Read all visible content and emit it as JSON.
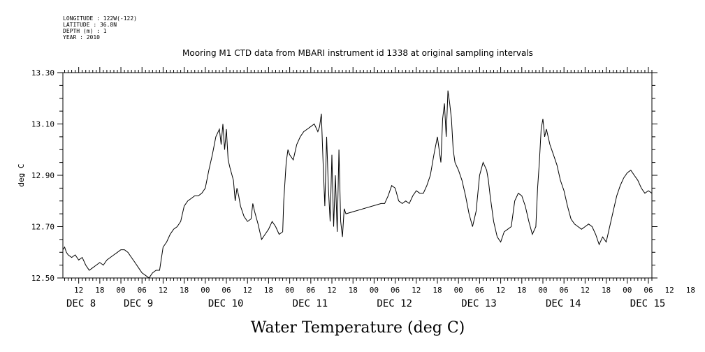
{
  "meta": {
    "longitude": "LONGITUDE : 122W(-122)",
    "latitude": "LATITUDE : 36.8N",
    "depth": "DEPTH (m) : 1",
    "year": "YEAR : 2010"
  },
  "chart_data": {
    "type": "line",
    "title": "Mooring M1 CTD data from MBARI instrument id 1338 at original sampling intervals",
    "xlabel": "Water Temperature (deg C)",
    "ylabel": "deg C",
    "ylim": [
      12.5,
      13.3
    ],
    "yticks": [
      "12.50",
      "12.70",
      "12.90",
      "13.10",
      "13.30"
    ],
    "x_unit": "hours since DEC 8 00:00",
    "xlim": [
      7.5,
      175
    ],
    "hour_ticks": [
      "12",
      "18",
      "00",
      "06",
      "12",
      "18",
      "00",
      "06",
      "12",
      "18",
      "00",
      "06",
      "12",
      "18",
      "00",
      "06",
      "12",
      "18",
      "00",
      "06",
      "12",
      "18",
      "00",
      "06",
      "12",
      "18",
      "00",
      "06",
      "12",
      "18",
      "00",
      "06"
    ],
    "day_labels": [
      "DEC  8",
      "DEC  9",
      "DEC 10",
      "DEC 11",
      "DEC 12",
      "DEC 13",
      "DEC 14",
      "DEC 15"
    ],
    "series": [
      {
        "values": [
          [
            7.5,
            12.61
          ],
          [
            8,
            12.62
          ],
          [
            8.5,
            12.6
          ],
          [
            9,
            12.59
          ],
          [
            10,
            12.58
          ],
          [
            11,
            12.59
          ],
          [
            12,
            12.57
          ],
          [
            13,
            12.58
          ],
          [
            14,
            12.55
          ],
          [
            15,
            12.53
          ],
          [
            16,
            12.54
          ],
          [
            17,
            12.55
          ],
          [
            18,
            12.56
          ],
          [
            19,
            12.55
          ],
          [
            20,
            12.57
          ],
          [
            21,
            12.58
          ],
          [
            22,
            12.59
          ],
          [
            23,
            12.6
          ],
          [
            24,
            12.61
          ],
          [
            25,
            12.61
          ],
          [
            26,
            12.6
          ],
          [
            27,
            12.58
          ],
          [
            28,
            12.56
          ],
          [
            29,
            12.54
          ],
          [
            30,
            12.52
          ],
          [
            31,
            12.51
          ],
          [
            32,
            12.5
          ],
          [
            33,
            12.52
          ],
          [
            34,
            12.53
          ],
          [
            35,
            12.53
          ],
          [
            36,
            12.62
          ],
          [
            37,
            12.64
          ],
          [
            38,
            12.67
          ],
          [
            39,
            12.69
          ],
          [
            40,
            12.7
          ],
          [
            41,
            12.72
          ],
          [
            42,
            12.78
          ],
          [
            43,
            12.8
          ],
          [
            44,
            12.81
          ],
          [
            45,
            12.82
          ],
          [
            46,
            12.82
          ],
          [
            47,
            12.83
          ],
          [
            48,
            12.85
          ],
          [
            49,
            12.92
          ],
          [
            50,
            12.98
          ],
          [
            51,
            13.05
          ],
          [
            52,
            13.08
          ],
          [
            52.5,
            13.02
          ],
          [
            53,
            13.1
          ],
          [
            53.5,
            13.0
          ],
          [
            54,
            13.08
          ],
          [
            54.5,
            12.96
          ],
          [
            55,
            12.93
          ],
          [
            56,
            12.88
          ],
          [
            56.5,
            12.8
          ],
          [
            57,
            12.85
          ],
          [
            57.5,
            12.82
          ],
          [
            58,
            12.78
          ],
          [
            59,
            12.74
          ],
          [
            60,
            12.72
          ],
          [
            61,
            12.73
          ],
          [
            61.5,
            12.79
          ],
          [
            62,
            12.76
          ],
          [
            63,
            12.71
          ],
          [
            64,
            12.65
          ],
          [
            65,
            12.67
          ],
          [
            66,
            12.69
          ],
          [
            67,
            12.72
          ],
          [
            68,
            12.7
          ],
          [
            69,
            12.67
          ],
          [
            70,
            12.68
          ],
          [
            70.3,
            12.8
          ],
          [
            71,
            12.95
          ],
          [
            71.5,
            13.0
          ],
          [
            72,
            12.98
          ],
          [
            73,
            12.96
          ],
          [
            74,
            13.02
          ],
          [
            75,
            13.05
          ],
          [
            76,
            13.07
          ],
          [
            77,
            13.08
          ],
          [
            78,
            13.09
          ],
          [
            79,
            13.1
          ],
          [
            80,
            13.07
          ],
          [
            80.5,
            13.09
          ],
          [
            81,
            13.14
          ],
          [
            81.5,
            12.95
          ],
          [
            82,
            12.78
          ],
          [
            82.5,
            13.05
          ],
          [
            83,
            12.85
          ],
          [
            83.5,
            12.72
          ],
          [
            84,
            12.98
          ],
          [
            84.5,
            12.7
          ],
          [
            85,
            12.9
          ],
          [
            85.5,
            12.68
          ],
          [
            86,
            13.0
          ],
          [
            86.5,
            12.72
          ],
          [
            87,
            12.66
          ],
          [
            87.5,
            12.77
          ],
          [
            88,
            12.75
          ],
          [
            98,
            12.79
          ],
          [
            99,
            12.79
          ],
          [
            100,
            12.82
          ],
          [
            101,
            12.86
          ],
          [
            102,
            12.85
          ],
          [
            103,
            12.8
          ],
          [
            104,
            12.79
          ],
          [
            105,
            12.8
          ],
          [
            106,
            12.79
          ],
          [
            107,
            12.82
          ],
          [
            108,
            12.84
          ],
          [
            109,
            12.83
          ],
          [
            110,
            12.83
          ],
          [
            111,
            12.86
          ],
          [
            112,
            12.9
          ],
          [
            113,
            12.98
          ],
          [
            114,
            13.05
          ],
          [
            115,
            12.95
          ],
          [
            115.5,
            13.12
          ],
          [
            116,
            13.18
          ],
          [
            116.5,
            13.05
          ],
          [
            117,
            13.23
          ],
          [
            117.5,
            13.18
          ],
          [
            118,
            13.12
          ],
          [
            118.5,
            13.0
          ],
          [
            119,
            12.95
          ],
          [
            120,
            12.92
          ],
          [
            121,
            12.88
          ],
          [
            122,
            12.82
          ],
          [
            123,
            12.75
          ],
          [
            124,
            12.7
          ],
          [
            125,
            12.76
          ],
          [
            126,
            12.9
          ],
          [
            127,
            12.95
          ],
          [
            128,
            12.92
          ],
          [
            128.5,
            12.88
          ],
          [
            129,
            12.82
          ],
          [
            130,
            12.72
          ],
          [
            131,
            12.66
          ],
          [
            132,
            12.64
          ],
          [
            133,
            12.68
          ],
          [
            134,
            12.69
          ],
          [
            135,
            12.7
          ],
          [
            136,
            12.8
          ],
          [
            137,
            12.83
          ],
          [
            138,
            12.82
          ],
          [
            139,
            12.78
          ],
          [
            140,
            12.72
          ],
          [
            141,
            12.67
          ],
          [
            142,
            12.7
          ],
          [
            142.5,
            12.85
          ],
          [
            143,
            12.95
          ],
          [
            143.5,
            13.08
          ],
          [
            144,
            13.12
          ],
          [
            144.5,
            13.05
          ],
          [
            145,
            13.08
          ],
          [
            146,
            13.02
          ],
          [
            147,
            12.98
          ],
          [
            148,
            12.94
          ],
          [
            149,
            12.88
          ],
          [
            150,
            12.84
          ],
          [
            151,
            12.78
          ],
          [
            152,
            12.73
          ],
          [
            153,
            12.71
          ],
          [
            154,
            12.7
          ],
          [
            155,
            12.69
          ],
          [
            156,
            12.7
          ],
          [
            157,
            12.71
          ],
          [
            158,
            12.7
          ],
          [
            159,
            12.67
          ],
          [
            160,
            12.63
          ],
          [
            161,
            12.66
          ],
          [
            162,
            12.64
          ],
          [
            163,
            12.7
          ],
          [
            164,
            12.76
          ],
          [
            165,
            12.82
          ],
          [
            166,
            12.86
          ],
          [
            167,
            12.89
          ],
          [
            168,
            12.91
          ],
          [
            169,
            12.92
          ],
          [
            170,
            12.9
          ],
          [
            171,
            12.88
          ],
          [
            172,
            12.85
          ],
          [
            173,
            12.83
          ],
          [
            174,
            12.84
          ],
          [
            175,
            12.83
          ]
        ]
      }
    ]
  }
}
